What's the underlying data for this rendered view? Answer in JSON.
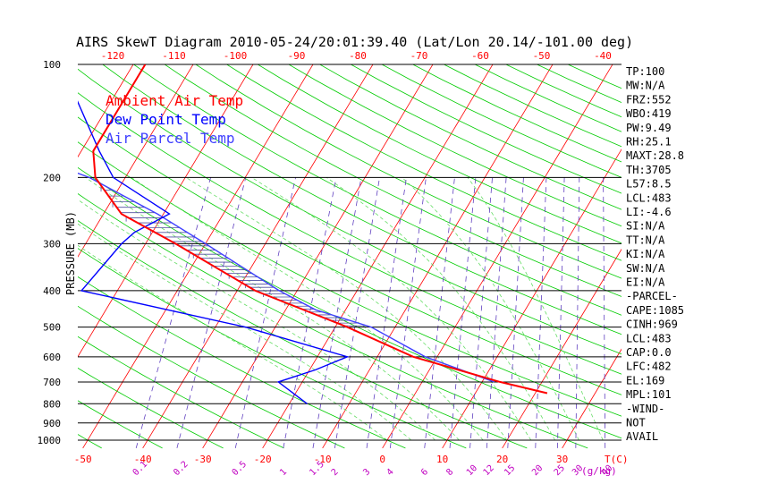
{
  "chart_data": {
    "type": "line",
    "title": "AIRS SkewT Diagram 2010-05-24/20:01:39.40 (Lat/Lon 20.14/-101.00 deg)",
    "ylabel": "PRESSURE (MB)",
    "temp_unit_label": "T(C)",
    "mixing_unit_label": "(g/kg)",
    "pressure_ticks": [
      100,
      200,
      300,
      400,
      500,
      600,
      700,
      800,
      900,
      1000
    ],
    "bottom_temp_ticks": [
      "-50",
      "-40",
      "-30",
      "-20",
      "-10",
      "0",
      "10",
      "20",
      "30"
    ],
    "top_temp_ticks": [
      "-120",
      "-110",
      "-100",
      "-90",
      "-80",
      "-70",
      "-60",
      "-50",
      "-40"
    ],
    "mixing_ratio_ticks": [
      "0.1",
      "0.2",
      "0.5",
      "1",
      "1.5",
      "2",
      "3",
      "4",
      "6",
      "8",
      "10",
      "12",
      "15",
      "20",
      "25",
      "30",
      "40"
    ],
    "legend": [
      {
        "label": "Ambient Air Temp",
        "color": "#ff0000"
      },
      {
        "label": "Dew Point Temp",
        "color": "#0000ff"
      },
      {
        "label": "Air Parcel Temp",
        "color": "#4040ff"
      }
    ],
    "series": [
      {
        "name": "Ambient Air Temp",
        "color": "#ff0000",
        "points": [
          [
            100,
            -78
          ],
          [
            170,
            -78
          ],
          [
            200,
            -75
          ],
          [
            250,
            -67
          ],
          [
            300,
            -55
          ],
          [
            400,
            -37
          ],
          [
            500,
            -18
          ],
          [
            600,
            -4
          ],
          [
            700,
            13
          ],
          [
            750,
            22
          ]
        ]
      },
      {
        "name": "Dew Point Temp",
        "color": "#0000ff",
        "points": [
          [
            100,
            -92
          ],
          [
            170,
            -77
          ],
          [
            200,
            -72
          ],
          [
            250,
            -59
          ],
          [
            280,
            -63
          ],
          [
            300,
            -64
          ],
          [
            400,
            -66
          ],
          [
            500,
            -35
          ],
          [
            600,
            -15
          ],
          [
            650,
            -19
          ],
          [
            700,
            -24
          ],
          [
            800,
            -17
          ]
        ]
      },
      {
        "name": "Air Parcel Temp",
        "color": "#4040ff",
        "points": [
          [
            100,
            -128
          ],
          [
            150,
            -102
          ],
          [
            200,
            -76
          ],
          [
            250,
            -61
          ],
          [
            300,
            -50
          ],
          [
            400,
            -33
          ],
          [
            450,
            -25
          ],
          [
            500,
            -14
          ],
          [
            600,
            -2
          ],
          [
            700,
            12
          ]
        ]
      }
    ],
    "indices": [
      "TP:100",
      "MW:N/A",
      "FRZ:552",
      "WBO:419",
      "PW:9.49",
      "RH:25.1",
      "MAXT:28.8",
      "TH:3705",
      "L57:8.5",
      "LCL:483",
      "LI:-4.6",
      "SI:N/A",
      "TT:N/A",
      "KI:N/A",
      "SW:N/A",
      "EI:N/A",
      "-PARCEL-",
      "CAPE:1085",
      "CINH:969",
      "LCL:483",
      "CAP:0.0",
      "LFC:482",
      "EL:169",
      "MPL:101",
      "-WIND-",
      "NOT",
      "AVAIL"
    ],
    "colors": {
      "isotherm": "#ff0000",
      "dry_adiabat": "#00cc00",
      "moist_adiabat": "#66dd66",
      "mixing_ratio": "#6040c0",
      "isobar": "#000000",
      "tick_text": "#ff0000",
      "mixing_text": "#c000c0"
    }
  }
}
